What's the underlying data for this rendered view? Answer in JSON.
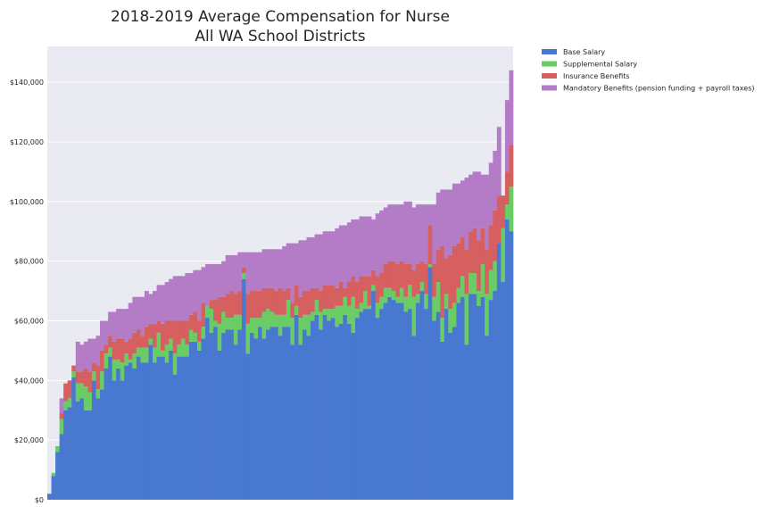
{
  "chart_data": {
    "type": "bar",
    "stacked": true,
    "title": [
      "2018-2019 Average Compensation for Nurse",
      "All WA School Districts"
    ],
    "xlabel": "",
    "ylabel": "",
    "ylim": [
      0,
      152000
    ],
    "yticks": [
      0,
      20000,
      40000,
      60000,
      80000,
      100000,
      120000,
      140000
    ],
    "ytick_labels": [
      "$0",
      "$20,000",
      "$40,000",
      "$60,000",
      "$80,000",
      "$100,000",
      "$120,000",
      "$140,000"
    ],
    "grid": true,
    "legend_position": "outside-top-right",
    "colors": [
      "#4878cf",
      "#6acc65",
      "#d65f5f",
      "#b47cc7"
    ],
    "background": "#eaeaf2",
    "series": [
      {
        "name": "Base Salary",
        "values": [
          2000,
          8000,
          16000,
          22000,
          30000,
          31000,
          41000,
          33000,
          34000,
          30000,
          30000,
          40000,
          34000,
          37000,
          44000,
          48000,
          40000,
          44000,
          40000,
          45000,
          46000,
          44000,
          48000,
          46000,
          46000,
          52000,
          46000,
          48000,
          48000,
          46000,
          50000,
          42000,
          48000,
          48000,
          48000,
          53000,
          53000,
          50000,
          54000,
          61000,
          56000,
          58000,
          50000,
          56000,
          57000,
          57000,
          52000,
          57000,
          74000,
          49000,
          56000,
          54000,
          58000,
          54000,
          57000,
          58000,
          58000,
          55000,
          58000,
          58000,
          52000,
          62000,
          52000,
          57000,
          55000,
          60000,
          62000,
          57000,
          62000,
          60000,
          61000,
          58000,
          59000,
          62000,
          59000,
          56000,
          61000,
          63000,
          64000,
          64000,
          70000,
          61000,
          64000,
          66000,
          68000,
          67000,
          66000,
          66000,
          63000,
          64000,
          55000,
          66000,
          70000,
          64000,
          78000,
          60000,
          63000,
          53000,
          64000,
          56000,
          58000,
          66000,
          68000,
          52000,
          69000,
          69000,
          65000,
          68000,
          55000,
          67000,
          70000,
          86000,
          73000,
          94000,
          90000
        ]
      },
      {
        "name": "Supplemental Salary",
        "values": [
          0,
          1000,
          2000,
          5000,
          3000,
          3000,
          2000,
          6000,
          5000,
          8000,
          6000,
          3000,
          3000,
          6000,
          5000,
          3000,
          7000,
          3000,
          6000,
          4000,
          1000,
          5000,
          3000,
          5000,
          5000,
          2000,
          5000,
          8000,
          2000,
          6000,
          4000,
          7000,
          4000,
          6000,
          4000,
          4000,
          3000,
          3000,
          4000,
          4000,
          8000,
          2000,
          9000,
          7000,
          4000,
          4000,
          10000,
          5000,
          2000,
          10000,
          5000,
          7000,
          3000,
          9000,
          7000,
          5000,
          4000,
          7000,
          4000,
          9000,
          9000,
          3000,
          9000,
          5000,
          7000,
          3000,
          5000,
          6000,
          2000,
          4000,
          3000,
          7000,
          6000,
          6000,
          6000,
          12000,
          3000,
          3000,
          6000,
          1000,
          2000,
          5000,
          4000,
          5000,
          3000,
          3000,
          2000,
          5000,
          5000,
          8000,
          13000,
          3000,
          3000,
          5000,
          1000,
          8000,
          10000,
          8000,
          5000,
          8000,
          8000,
          5000,
          7000,
          17000,
          7000,
          7000,
          5000,
          11000,
          14000,
          10000,
          10000,
          0,
          18000,
          5000,
          15000
        ]
      },
      {
        "name": "Insurance Benefits",
        "values": [
          0,
          0,
          0,
          2000,
          6000,
          6000,
          2000,
          4000,
          4000,
          6000,
          7000,
          3000,
          8000,
          7000,
          3000,
          4000,
          6000,
          7000,
          8000,
          4000,
          7000,
          7000,
          6000,
          4000,
          7000,
          5000,
          8000,
          4000,
          9000,
          8000,
          6000,
          11000,
          8000,
          6000,
          8000,
          5000,
          7000,
          7000,
          8000,
          0,
          3000,
          7000,
          9000,
          5000,
          8000,
          9000,
          7000,
          8000,
          2000,
          10000,
          9000,
          9000,
          9000,
          8000,
          7000,
          8000,
          8000,
          9000,
          8000,
          4000,
          5000,
          7000,
          7000,
          8000,
          8000,
          8000,
          4000,
          7000,
          8000,
          8000,
          8000,
          6000,
          8000,
          3000,
          8000,
          7000,
          9000,
          9000,
          5000,
          10000,
          5000,
          9000,
          8000,
          8000,
          9000,
          10000,
          11000,
          9000,
          11000,
          7000,
          9000,
          10000,
          7000,
          10000,
          13000,
          11000,
          11000,
          24000,
          12000,
          18000,
          19000,
          15000,
          13000,
          15000,
          14000,
          15000,
          17000,
          12000,
          15000,
          15000,
          17000,
          16000,
          11000,
          11000,
          14000
        ]
      },
      {
        "name": "Mandatory Benefits (pension funding + payroll taxes)",
        "values": [
          0,
          0,
          0,
          5000,
          0,
          0,
          0,
          10000,
          9000,
          9000,
          11000,
          8000,
          10000,
          10000,
          8000,
          8000,
          10000,
          10000,
          10000,
          11000,
          12000,
          12000,
          11000,
          13000,
          12000,
          10000,
          11000,
          12000,
          13000,
          13000,
          14000,
          15000,
          15000,
          15000,
          16000,
          14000,
          14000,
          17000,
          12000,
          14000,
          12000,
          12000,
          11000,
          12000,
          13000,
          12000,
          13000,
          13000,
          5000,
          14000,
          13000,
          13000,
          13000,
          13000,
          13000,
          13000,
          14000,
          13000,
          15000,
          15000,
          20000,
          14000,
          19000,
          17000,
          18000,
          17000,
          18000,
          19000,
          18000,
          18000,
          18000,
          20000,
          19000,
          21000,
          20000,
          19000,
          21000,
          20000,
          20000,
          20000,
          17000,
          21000,
          21000,
          19000,
          19000,
          19000,
          20000,
          19000,
          21000,
          21000,
          21000,
          20000,
          19000,
          20000,
          7000,
          20000,
          19000,
          19000,
          23000,
          22000,
          21000,
          20000,
          19000,
          24000,
          19000,
          19000,
          23000,
          18000,
          25000,
          21000,
          20000,
          23000,
          0,
          24000,
          25000
        ]
      }
    ]
  }
}
